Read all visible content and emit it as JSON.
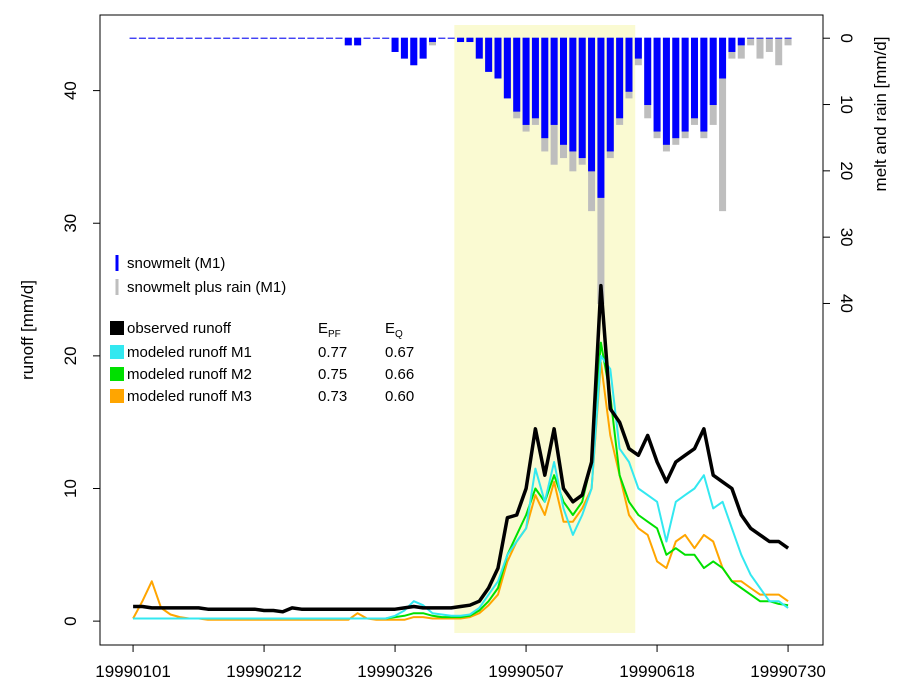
{
  "chart_data": {
    "type": "line",
    "ylabel": "runoff [mm/d]",
    "y2label": "melt and rain [mm/d]",
    "x": [
      0,
      3,
      6,
      9,
      12,
      15,
      18,
      21,
      24,
      27,
      30,
      33,
      36,
      39,
      42,
      45,
      48,
      51,
      54,
      57,
      60,
      63,
      66,
      69,
      72,
      75,
      78,
      81,
      84,
      87,
      90,
      93,
      96,
      99,
      102,
      105,
      108,
      111,
      114,
      117,
      120,
      123,
      126,
      129,
      132,
      135,
      138,
      141,
      144,
      147,
      150,
      153,
      156,
      159,
      162,
      165,
      168,
      171,
      174,
      177,
      180,
      183,
      186,
      189,
      192,
      195,
      198,
      201,
      204,
      207,
      210
    ],
    "xlim": [
      -10.6,
      221.2
    ],
    "xticks": [
      {
        "value": 0,
        "label": "19990101"
      },
      {
        "value": 42,
        "label": "19990212"
      },
      {
        "value": 84,
        "label": "19990326"
      },
      {
        "value": 126,
        "label": "19990507"
      },
      {
        "value": 168,
        "label": "19990618"
      },
      {
        "value": 210,
        "label": "19990730"
      }
    ],
    "ylim": [
      -1.8,
      45.7
    ],
    "yticks": [
      0,
      10,
      20,
      30,
      40
    ],
    "y2lim": [
      91.5,
      -3.5
    ],
    "y2ticks": [
      0,
      10,
      20,
      30,
      40
    ],
    "highlight_x": [
      103,
      161
    ],
    "highlight_color": "#fafad2",
    "efficiency_columns": [
      {
        "symbol": "E",
        "subscript": "PF"
      },
      {
        "symbol": "E",
        "subscript": "Q"
      }
    ],
    "series": [
      {
        "name": "snowmelt (M1)",
        "kind": "bar",
        "axis": "y2",
        "color": "#0000ff",
        "values": [
          0,
          0,
          0,
          0,
          0,
          0,
          0,
          0,
          0,
          0,
          0,
          0,
          0,
          0,
          0,
          0,
          0,
          0,
          0,
          0,
          0,
          0,
          0,
          1,
          1,
          0,
          0,
          0,
          2,
          3,
          4,
          3,
          0.5,
          0,
          0,
          0.5,
          0.5,
          3,
          5,
          6,
          9,
          11,
          13,
          12,
          15,
          13,
          16,
          17,
          18,
          20,
          24,
          17,
          12,
          8,
          3,
          10,
          14,
          16,
          15,
          14,
          12,
          14,
          10,
          6,
          2,
          1,
          0,
          0,
          0,
          0,
          0
        ]
      },
      {
        "name": "snowmelt plus rain (M1)",
        "kind": "bar",
        "axis": "y2",
        "color": "#bebebe",
        "values": [
          0,
          0,
          0,
          0,
          0,
          0,
          0,
          0,
          0,
          0,
          0,
          0,
          0,
          0,
          0,
          0,
          0,
          0,
          0,
          0,
          0,
          0,
          0,
          1,
          1,
          0,
          0,
          0,
          2,
          3,
          4,
          3,
          1,
          0,
          0,
          0.5,
          0.5,
          3,
          5,
          6,
          9,
          12,
          14,
          13,
          17,
          19,
          18,
          20,
          19,
          26,
          40,
          18,
          13,
          9,
          4,
          12,
          15,
          17,
          16,
          15,
          13,
          15,
          13,
          26,
          3,
          3,
          1,
          3,
          2,
          4,
          1
        ]
      },
      {
        "name": "observed runoff",
        "kind": "line",
        "color": "#000000",
        "width": 3.5,
        "values": [
          1.1,
          1.1,
          1.0,
          1.0,
          1.0,
          1.0,
          1.0,
          1.0,
          0.9,
          0.9,
          0.9,
          0.9,
          0.9,
          0.9,
          0.8,
          0.8,
          0.7,
          1.0,
          0.9,
          0.9,
          0.9,
          0.9,
          0.9,
          0.9,
          0.9,
          0.9,
          0.9,
          0.9,
          0.9,
          1.0,
          1.1,
          1.0,
          1.0,
          1.0,
          1.0,
          1.1,
          1.2,
          1.5,
          2.5,
          4.0,
          7.8,
          8.0,
          10.0,
          14.5,
          11.0,
          14.5,
          10.0,
          9.0,
          9.5,
          12.0,
          25.3,
          16.0,
          15.0,
          13.0,
          12.5,
          14.0,
          12.0,
          10.5,
          12.0,
          12.5,
          13.0,
          14.5,
          11.0,
          10.5,
          10.0,
          8.0,
          7.0,
          6.5,
          6.0,
          6.0,
          5.5
        ]
      },
      {
        "name": "modeled runoff M1",
        "kind": "line",
        "color": "#33e8f0",
        "width": 2,
        "efficiency": [
          "0.77",
          "0.67"
        ],
        "values": [
          0.2,
          0.2,
          0.2,
          0.2,
          0.2,
          0.2,
          0.2,
          0.2,
          0.2,
          0.2,
          0.2,
          0.2,
          0.2,
          0.2,
          0.2,
          0.2,
          0.2,
          0.2,
          0.2,
          0.2,
          0.2,
          0.2,
          0.2,
          0.2,
          0.2,
          0.2,
          0.2,
          0.2,
          0.4,
          0.8,
          1.5,
          1.2,
          0.6,
          0.5,
          0.4,
          0.4,
          0.5,
          1.0,
          2.0,
          3.0,
          5.0,
          6.0,
          7.0,
          11.5,
          9.0,
          12.0,
          8.5,
          6.5,
          8.0,
          10.0,
          20.0,
          19.0,
          13.0,
          12.0,
          10.0,
          9.5,
          9.0,
          6.0,
          9.0,
          9.5,
          10.0,
          11.0,
          8.5,
          9.0,
          7.0,
          5.0,
          3.5,
          2.5,
          1.5,
          1.5,
          1.0
        ]
      },
      {
        "name": "modeled runoff M2",
        "kind": "line",
        "color": "#00e000",
        "width": 2,
        "efficiency": [
          "0.75",
          "0.66"
        ],
        "values": [
          0.2,
          0.2,
          0.2,
          0.2,
          0.2,
          0.2,
          0.2,
          0.2,
          0.2,
          0.2,
          0.2,
          0.2,
          0.2,
          0.2,
          0.2,
          0.2,
          0.2,
          0.2,
          0.2,
          0.2,
          0.2,
          0.2,
          0.2,
          0.2,
          0.2,
          0.2,
          0.2,
          0.2,
          0.3,
          0.4,
          0.6,
          0.6,
          0.4,
          0.3,
          0.3,
          0.3,
          0.4,
          0.8,
          1.5,
          2.5,
          5.0,
          6.5,
          8.0,
          10.0,
          9.0,
          11.0,
          9.0,
          8.0,
          9.0,
          12.0,
          21.0,
          17.0,
          11.0,
          9.0,
          8.0,
          7.5,
          7.0,
          5.0,
          5.5,
          5.0,
          5.0,
          4.0,
          4.5,
          4.0,
          3.0,
          2.5,
          2.0,
          1.5,
          1.5,
          1.3,
          1.2
        ]
      },
      {
        "name": "modeled runoff M3",
        "kind": "line",
        "color": "#ffa500",
        "width": 2,
        "efficiency": [
          "0.73",
          "0.60"
        ],
        "values": [
          0.2,
          1.5,
          3.0,
          1.0,
          0.5,
          0.3,
          0.2,
          0.2,
          0.1,
          0.1,
          0.1,
          0.1,
          0.1,
          0.1,
          0.1,
          0.1,
          0.1,
          0.1,
          0.1,
          0.1,
          0.1,
          0.1,
          0.1,
          0.1,
          0.6,
          0.2,
          0.1,
          0.1,
          0.1,
          0.1,
          0.3,
          0.3,
          0.2,
          0.2,
          0.2,
          0.2,
          0.3,
          0.6,
          1.2,
          2.0,
          4.5,
          6.0,
          7.0,
          9.5,
          8.0,
          10.5,
          7.5,
          7.5,
          8.5,
          10.0,
          19.5,
          14.0,
          11.0,
          8.0,
          7.0,
          6.5,
          4.5,
          4.0,
          6.0,
          6.5,
          5.5,
          6.5,
          6.0,
          4.0,
          3.0,
          3.0,
          2.5,
          2.0,
          2.0,
          2.0,
          1.5
        ]
      }
    ]
  }
}
